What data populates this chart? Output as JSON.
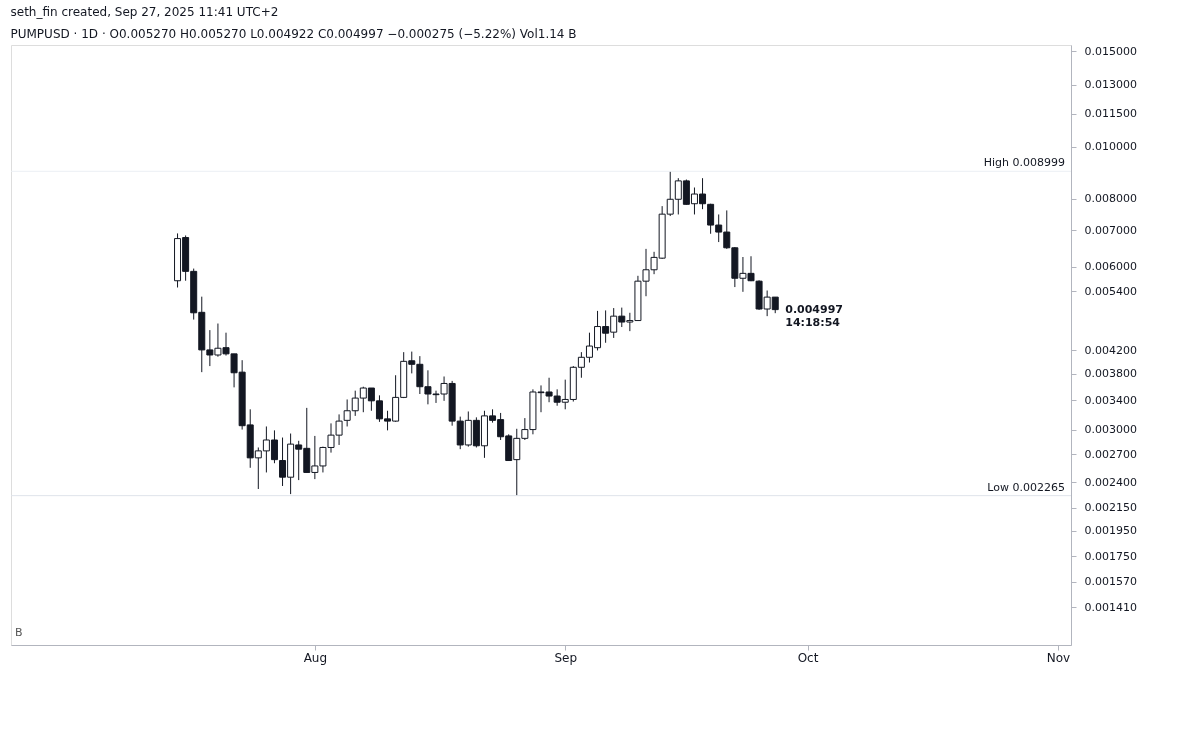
{
  "chart_data": {
    "type": "candlestick",
    "title": "seth_fin created, Sep 27, 2025 11:41 UTC+2",
    "subtitle": "PUMPUSD · 1D · O0.005270  H0.005270  L0.004922  C0.004997  −0.000275 (−5.22%)  Vol1.14 B",
    "x": [
      "2025-07-15",
      "2025-07-16",
      "2025-07-17",
      "2025-07-18",
      "2025-07-19",
      "2025-07-20",
      "2025-07-21",
      "2025-07-22",
      "2025-07-23",
      "2025-07-24",
      "2025-07-25",
      "2025-07-26",
      "2025-07-27",
      "2025-07-28",
      "2025-07-29",
      "2025-07-30",
      "2025-07-31",
      "2025-08-01",
      "2025-08-02",
      "2025-08-03",
      "2025-08-04",
      "2025-08-05",
      "2025-08-06",
      "2025-08-07",
      "2025-08-08",
      "2025-08-09",
      "2025-08-10",
      "2025-08-11",
      "2025-08-12",
      "2025-08-13",
      "2025-08-14",
      "2025-08-15",
      "2025-08-16",
      "2025-08-17",
      "2025-08-18",
      "2025-08-19",
      "2025-08-20",
      "2025-08-21",
      "2025-08-22",
      "2025-08-23",
      "2025-08-24",
      "2025-08-25",
      "2025-08-26",
      "2025-08-27",
      "2025-08-28",
      "2025-08-29",
      "2025-08-30",
      "2025-08-31",
      "2025-09-01",
      "2025-09-02",
      "2025-09-03",
      "2025-09-04",
      "2025-09-05",
      "2025-09-06",
      "2025-09-07",
      "2025-09-08",
      "2025-09-09",
      "2025-09-10",
      "2025-09-11",
      "2025-09-12",
      "2025-09-13",
      "2025-09-14",
      "2025-09-15",
      "2025-09-16",
      "2025-09-17",
      "2025-09-18",
      "2025-09-19",
      "2025-09-20",
      "2025-09-21",
      "2025-09-22",
      "2025-09-23",
      "2025-09-24",
      "2025-09-25",
      "2025-09-26",
      "2025-09-27"
    ],
    "ohlc": [
      [
        0.00565,
        0.00691,
        0.00549,
        0.00676
      ],
      [
        0.00679,
        0.00685,
        0.00565,
        0.00588
      ],
      [
        0.00588,
        0.00595,
        0.00479,
        0.00493
      ],
      [
        0.00494,
        0.00528,
        0.00383,
        0.00421
      ],
      [
        0.00421,
        0.00458,
        0.00393,
        0.00412
      ],
      [
        0.00412,
        0.00471,
        0.00409,
        0.00424
      ],
      [
        0.00425,
        0.00453,
        0.00411,
        0.00414
      ],
      [
        0.00414,
        0.00414,
        0.00359,
        0.00382
      ],
      [
        0.00383,
        0.00403,
        0.003,
        0.00305
      ],
      [
        0.00306,
        0.00327,
        0.00255,
        0.00266
      ],
      [
        0.00266,
        0.00278,
        0.00233,
        0.00274
      ],
      [
        0.00274,
        0.00304,
        0.0025,
        0.00287
      ],
      [
        0.00287,
        0.00299,
        0.0026,
        0.00264
      ],
      [
        0.00263,
        0.0029,
        0.00236,
        0.00245
      ],
      [
        0.00245,
        0.00295,
        0.00228,
        0.00282
      ],
      [
        0.00281,
        0.00286,
        0.00242,
        0.00276
      ],
      [
        0.00277,
        0.00329,
        0.0025,
        0.0025
      ],
      [
        0.0025,
        0.00292,
        0.00243,
        0.00257
      ],
      [
        0.00257,
        0.00279,
        0.0025,
        0.00278
      ],
      [
        0.00278,
        0.00308,
        0.00272,
        0.00293
      ],
      [
        0.00293,
        0.0032,
        0.00281,
        0.00311
      ],
      [
        0.00312,
        0.00341,
        0.00304,
        0.00325
      ],
      [
        0.00325,
        0.00354,
        0.00318,
        0.00343
      ],
      [
        0.00343,
        0.0036,
        0.00323,
        0.00358
      ],
      [
        0.00358,
        0.00358,
        0.00325,
        0.00339
      ],
      [
        0.00339,
        0.00347,
        0.0031,
        0.00314
      ],
      [
        0.00314,
        0.00325,
        0.00299,
        0.00311
      ],
      [
        0.00311,
        0.00378,
        0.0031,
        0.00344
      ],
      [
        0.00344,
        0.00417,
        0.00343,
        0.00401
      ],
      [
        0.00402,
        0.00418,
        0.00381,
        0.00396
      ],
      [
        0.00396,
        0.0041,
        0.00349,
        0.0036
      ],
      [
        0.0036,
        0.00386,
        0.00334,
        0.00349
      ],
      [
        0.00349,
        0.00354,
        0.00336,
        0.00348
      ],
      [
        0.00349,
        0.00376,
        0.00339,
        0.00365
      ],
      [
        0.00365,
        0.00369,
        0.00305,
        0.00311
      ],
      [
        0.00311,
        0.00317,
        0.00276,
        0.00281
      ],
      [
        0.00281,
        0.00324,
        0.00279,
        0.00312
      ],
      [
        0.00312,
        0.00316,
        0.00278,
        0.0028
      ],
      [
        0.0028,
        0.00325,
        0.00266,
        0.00318
      ],
      [
        0.00318,
        0.00327,
        0.00309,
        0.00312
      ],
      [
        0.00313,
        0.00322,
        0.00287,
        0.00291
      ],
      [
        0.00292,
        0.00294,
        0.00263,
        0.00263
      ],
      [
        0.00264,
        0.00301,
        0.002265,
        0.00289
      ],
      [
        0.00289,
        0.00315,
        0.00287,
        0.003
      ],
      [
        0.003,
        0.00356,
        0.00294,
        0.00352
      ],
      [
        0.00352,
        0.00362,
        0.00323,
        0.00351
      ],
      [
        0.00352,
        0.00374,
        0.00337,
        0.00346
      ],
      [
        0.00346,
        0.00356,
        0.00332,
        0.00337
      ],
      [
        0.00337,
        0.00371,
        0.00327,
        0.00341
      ],
      [
        0.00341,
        0.00393,
        0.00338,
        0.00391
      ],
      [
        0.00391,
        0.00417,
        0.00374,
        0.00408
      ],
      [
        0.00408,
        0.00453,
        0.00399,
        0.00428
      ],
      [
        0.00425,
        0.00497,
        0.0042,
        0.00465
      ],
      [
        0.00465,
        0.00498,
        0.00434,
        0.00452
      ],
      [
        0.00454,
        0.00503,
        0.00443,
        0.00486
      ],
      [
        0.00486,
        0.00504,
        0.00464,
        0.00474
      ],
      [
        0.00474,
        0.00493,
        0.00456,
        0.00477
      ],
      [
        0.00477,
        0.00577,
        0.00477,
        0.00564
      ],
      [
        0.00564,
        0.00647,
        0.00529,
        0.00592
      ],
      [
        0.00592,
        0.00639,
        0.00581,
        0.00624
      ],
      [
        0.00622,
        0.00776,
        0.0062,
        0.0075
      ],
      [
        0.0075,
        0.008999,
        0.00744,
        0.00799
      ],
      [
        0.00799,
        0.00874,
        0.00749,
        0.00864
      ],
      [
        0.00864,
        0.00869,
        0.00781,
        0.00782
      ],
      [
        0.00784,
        0.0084,
        0.00749,
        0.00817
      ],
      [
        0.00817,
        0.00874,
        0.00766,
        0.00784
      ],
      [
        0.00782,
        0.00784,
        0.0069,
        0.00716
      ],
      [
        0.00716,
        0.00749,
        0.00666,
        0.00695
      ],
      [
        0.00695,
        0.00762,
        0.00647,
        0.0065
      ],
      [
        0.0065,
        0.00652,
        0.0055,
        0.00571
      ],
      [
        0.00571,
        0.00625,
        0.00539,
        0.00583
      ],
      [
        0.00583,
        0.00627,
        0.00564,
        0.00565
      ],
      [
        0.00564,
        0.00566,
        0.00499,
        0.00501
      ],
      [
        0.00501,
        0.00542,
        0.00486,
        0.00527
      ],
      [
        0.00527,
        0.00527,
        0.004922,
        0.004997
      ]
    ],
    "xlim": [
      "2025-06-25",
      "2025-11-02"
    ],
    "xticks": [
      {
        "value": "2025-08-01",
        "label": "Aug"
      },
      {
        "value": "2025-09-01",
        "label": "Sep"
      },
      {
        "value": "2025-10-01",
        "label": "Oct"
      },
      {
        "value": "2025-11-01",
        "label": "Nov"
      }
    ],
    "ylim": [
      0.0012,
      0.0154
    ],
    "log": true,
    "yticks": [
      {
        "value": 0.015,
        "label": "0.015000"
      },
      {
        "value": 0.013,
        "label": "0.013000"
      },
      {
        "value": 0.0115,
        "label": "0.011500"
      },
      {
        "value": 0.01,
        "label": "0.010000"
      },
      {
        "value": 0.008,
        "label": "0.008000"
      },
      {
        "value": 0.007,
        "label": "0.007000"
      },
      {
        "value": 0.006,
        "label": "0.006000"
      },
      {
        "value": 0.0054,
        "label": "0.005400"
      },
      {
        "value": 0.0042,
        "label": "0.004200"
      },
      {
        "value": 0.0038,
        "label": "0.003800"
      },
      {
        "value": 0.0034,
        "label": "0.003400"
      },
      {
        "value": 0.003,
        "label": "0.003000"
      },
      {
        "value": 0.0027,
        "label": "0.002700"
      },
      {
        "value": 0.0024,
        "label": "0.002400"
      },
      {
        "value": 0.00215,
        "label": "0.002150"
      },
      {
        "value": 0.00195,
        "label": "0.001950"
      },
      {
        "value": 0.00175,
        "label": "0.001750"
      },
      {
        "value": 0.00157,
        "label": "0.001570"
      },
      {
        "value": 0.00141,
        "label": "0.001410"
      }
    ],
    "ref_lines": [
      {
        "axis": "y",
        "value": 0.008999,
        "label": "High  0.008999",
        "color": "#eceff4"
      },
      {
        "axis": "y",
        "value": 0.002265,
        "label": "Low  0.002265",
        "color": "#dfe3ea"
      }
    ],
    "annotations": [
      "B",
      {
        "text": "0.004997",
        "x": "2025-09-27",
        "y": 0.004997
      },
      {
        "text": "14:18:54",
        "x": "2025-09-27",
        "y": 0.004997
      }
    ],
    "grid": false
  }
}
